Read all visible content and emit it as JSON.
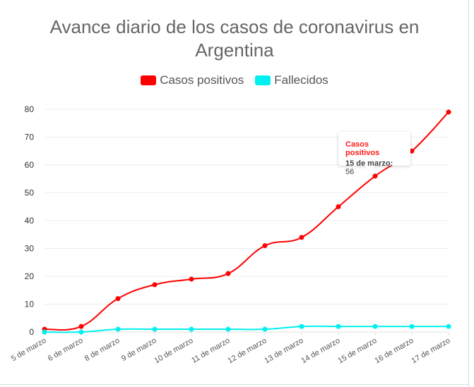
{
  "chart_data": {
    "type": "line",
    "title": "Avance diario de los casos de coronavirus en Argentina",
    "title_lines": [
      "Avance diario de los casos de coronavirus en",
      "Argentina"
    ],
    "categories": [
      "5 de marzo",
      "6 de marzo",
      "8 de marzo",
      "9 de marzo",
      "10 de marzo",
      "11 de marzo",
      "12 de marzo",
      "13 de marzo",
      "14 de marzo",
      "15 de marzo",
      "16 de marzo",
      "17 de marzo"
    ],
    "series": [
      {
        "name": "Casos positivos",
        "color": "#ff0000",
        "values": [
          1,
          2,
          12,
          17,
          19,
          21,
          31,
          34,
          45,
          56,
          65,
          79
        ]
      },
      {
        "name": "Fallecidos",
        "color": "#00f0f0",
        "values": [
          0,
          0,
          1,
          1,
          1,
          1,
          1,
          2,
          2,
          2,
          2,
          2
        ]
      }
    ],
    "ylim": [
      0,
      80
    ],
    "yticks": [
      0,
      10,
      20,
      30,
      40,
      50,
      60,
      70,
      80
    ],
    "grid": true,
    "legend": "top",
    "tooltip": {
      "title": "Casos positivos",
      "label": "15 de marzo:",
      "value": "56"
    }
  }
}
